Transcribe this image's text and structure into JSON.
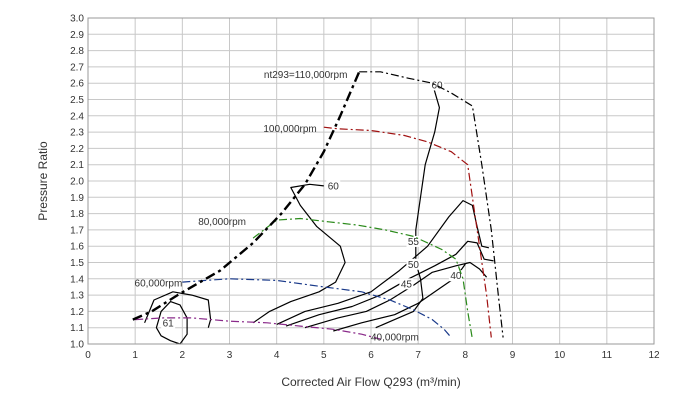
{
  "chart_data": {
    "type": "line",
    "title": "",
    "xlabel": "Corrected Air Flow Q293 (m³/min)",
    "ylabel": "Pressure Ratio",
    "xlim": [
      0,
      12
    ],
    "ylim": [
      1.0,
      3.0
    ],
    "x_ticks": [
      "0",
      "1",
      "2",
      "3",
      "4",
      "5",
      "6",
      "7",
      "8",
      "9",
      "10",
      "11",
      "12"
    ],
    "y_ticks": [
      "1.0",
      "1.1",
      "1.2",
      "1.3",
      "1.4",
      "1.5",
      "1.6",
      "1.7",
      "1.8",
      "1.9",
      "2.0",
      "2.1",
      "2.2",
      "2.3",
      "2.4",
      "2.5",
      "2.6",
      "2.7",
      "2.8",
      "2.9",
      "3.0"
    ],
    "grid": true,
    "surge_line": {
      "color": "#000000",
      "points": [
        [
          0.95,
          1.15
        ],
        [
          1.35,
          1.2
        ],
        [
          1.9,
          1.3
        ],
        [
          2.8,
          1.45
        ],
        [
          3.5,
          1.62
        ],
        [
          4.1,
          1.8
        ],
        [
          4.6,
          1.98
        ],
        [
          5.0,
          2.18
        ],
        [
          5.35,
          2.4
        ],
        [
          5.75,
          2.67
        ]
      ]
    },
    "speed_lines": [
      {
        "label": "nt293=110,000rpm",
        "color": "#000000",
        "points": [
          [
            5.75,
            2.67
          ],
          [
            6.2,
            2.67
          ],
          [
            6.8,
            2.63
          ],
          [
            7.3,
            2.6
          ],
          [
            7.7,
            2.54
          ],
          [
            8.15,
            2.46
          ],
          [
            8.35,
            2.1
          ],
          [
            8.55,
            1.7
          ],
          [
            8.7,
            1.3
          ],
          [
            8.8,
            1.04
          ]
        ]
      },
      {
        "label": "100,000rpm",
        "color": "#a01010",
        "points": [
          [
            5.0,
            2.33
          ],
          [
            5.3,
            2.32
          ],
          [
            6.0,
            2.31
          ],
          [
            6.7,
            2.28
          ],
          [
            7.2,
            2.24
          ],
          [
            7.7,
            2.18
          ],
          [
            8.05,
            2.1
          ],
          [
            8.15,
            1.9
          ],
          [
            8.3,
            1.6
          ],
          [
            8.45,
            1.3
          ],
          [
            8.55,
            1.04
          ]
        ]
      },
      {
        "label": "80,000rpm",
        "color": "#2a8a1a",
        "points": [
          [
            3.5,
            1.65
          ],
          [
            4.0,
            1.76
          ],
          [
            4.5,
            1.77
          ],
          [
            5.1,
            1.75
          ],
          [
            5.7,
            1.73
          ],
          [
            6.3,
            1.7
          ],
          [
            6.9,
            1.66
          ],
          [
            7.5,
            1.58
          ],
          [
            7.8,
            1.52
          ],
          [
            7.95,
            1.4
          ],
          [
            8.05,
            1.2
          ],
          [
            8.15,
            1.03
          ]
        ]
      },
      {
        "label": "60,000rpm",
        "color": "#1a3a8a",
        "points": [
          [
            2.0,
            1.38
          ],
          [
            2.5,
            1.39
          ],
          [
            3.0,
            1.4
          ],
          [
            4.0,
            1.39
          ],
          [
            5.0,
            1.35
          ],
          [
            5.8,
            1.32
          ],
          [
            6.4,
            1.27
          ],
          [
            6.9,
            1.21
          ],
          [
            7.3,
            1.15
          ],
          [
            7.55,
            1.09
          ],
          [
            7.7,
            1.04
          ]
        ]
      },
      {
        "label": "40,000rpm",
        "color": "#8a2a8a",
        "points": [
          [
            1.0,
            1.15
          ],
          [
            1.6,
            1.16
          ],
          [
            2.2,
            1.16
          ],
          [
            3.0,
            1.14
          ],
          [
            3.8,
            1.13
          ],
          [
            4.5,
            1.11
          ],
          [
            5.2,
            1.09
          ],
          [
            5.8,
            1.06
          ],
          [
            6.2,
            1.03
          ]
        ]
      }
    ],
    "efficiency_contours": [
      {
        "label": "60",
        "color": "#000000",
        "label_at": [
          5.2,
          1.96
        ],
        "points": [
          [
            3.5,
            1.13
          ],
          [
            3.85,
            1.2
          ],
          [
            4.3,
            1.26
          ],
          [
            4.9,
            1.32
          ],
          [
            5.25,
            1.38
          ],
          [
            5.45,
            1.5
          ],
          [
            5.35,
            1.6
          ],
          [
            4.85,
            1.72
          ],
          [
            4.5,
            1.85
          ],
          [
            4.3,
            1.96
          ],
          [
            4.7,
            1.98
          ],
          [
            5.0,
            1.97
          ]
        ]
      },
      {
        "label": "60",
        "color": "#000000",
        "label_at": [
          7.4,
          2.58
        ],
        "points": [
          [
            6.1,
            1.1
          ],
          [
            6.5,
            1.15
          ],
          [
            6.9,
            1.2
          ],
          [
            7.1,
            1.28
          ],
          [
            7.05,
            1.4
          ],
          [
            6.95,
            1.5
          ],
          [
            6.95,
            1.7
          ],
          [
            7.05,
            1.9
          ],
          [
            7.15,
            2.1
          ],
          [
            7.35,
            2.3
          ],
          [
            7.45,
            2.45
          ],
          [
            7.3,
            2.6
          ]
        ]
      },
      {
        "label": "55",
        "color": "#000000",
        "label_at": [
          6.9,
          1.62
        ],
        "points": [
          [
            4.0,
            1.12
          ],
          [
            4.6,
            1.2
          ],
          [
            5.3,
            1.25
          ],
          [
            6.0,
            1.32
          ],
          [
            6.6,
            1.45
          ],
          [
            7.2,
            1.6
          ],
          [
            7.65,
            1.78
          ],
          [
            7.95,
            1.88
          ],
          [
            8.15,
            1.85
          ],
          [
            8.25,
            1.72
          ],
          [
            8.35,
            1.6
          ],
          [
            8.5,
            1.59
          ]
        ]
      },
      {
        "label": "50",
        "color": "#000000",
        "label_at": [
          6.9,
          1.48
        ],
        "points": [
          [
            4.2,
            1.11
          ],
          [
            4.9,
            1.18
          ],
          [
            5.6,
            1.23
          ],
          [
            6.2,
            1.3
          ],
          [
            6.8,
            1.4
          ],
          [
            7.35,
            1.48
          ],
          [
            7.8,
            1.55
          ],
          [
            8.05,
            1.63
          ],
          [
            8.25,
            1.62
          ],
          [
            8.4,
            1.52
          ],
          [
            8.6,
            1.51
          ]
        ]
      },
      {
        "label": "45",
        "color": "#000000",
        "label_at": [
          6.75,
          1.36
        ],
        "points": [
          [
            4.6,
            1.1
          ],
          [
            5.3,
            1.16
          ],
          [
            5.9,
            1.2
          ],
          [
            6.4,
            1.27
          ],
          [
            6.9,
            1.36
          ],
          [
            7.3,
            1.44
          ],
          [
            7.8,
            1.48
          ],
          [
            8.1,
            1.5
          ],
          [
            8.3,
            1.46
          ],
          [
            8.45,
            1.41
          ]
        ]
      },
      {
        "label": "40",
        "color": "#000000",
        "label_at": [
          7.8,
          1.41
        ],
        "points": [
          [
            5.2,
            1.08
          ],
          [
            5.8,
            1.13
          ],
          [
            6.5,
            1.18
          ],
          [
            7.0,
            1.25
          ],
          [
            7.4,
            1.33
          ],
          [
            7.8,
            1.41
          ],
          [
            8.0,
            1.49
          ]
        ]
      },
      {
        "label": "61",
        "color": "#000000",
        "label_at": [
          1.7,
          1.12
        ],
        "closed": true,
        "points": [
          [
            1.45,
            1.1
          ],
          [
            1.55,
            1.2
          ],
          [
            1.75,
            1.26
          ],
          [
            1.95,
            1.24
          ],
          [
            2.1,
            1.16
          ],
          [
            2.1,
            1.06
          ],
          [
            1.95,
            1.0
          ],
          [
            1.75,
            1.02
          ],
          [
            1.55,
            1.05
          ]
        ]
      },
      {
        "label": "",
        "color": "#000000",
        "closed": false,
        "points": [
          [
            1.2,
            1.13
          ],
          [
            1.4,
            1.27
          ],
          [
            1.8,
            1.32
          ],
          [
            2.2,
            1.3
          ],
          [
            2.55,
            1.27
          ],
          [
            2.6,
            1.15
          ],
          [
            2.55,
            1.1
          ]
        ]
      }
    ],
    "annotations": [
      {
        "text": "nt293=110,000rpm",
        "x": 5.5,
        "y": 2.65,
        "anchor": "end"
      },
      {
        "text": "100,000rpm",
        "x": 4.85,
        "y": 2.32,
        "anchor": "end"
      },
      {
        "text": "80,000rpm",
        "x": 3.35,
        "y": 1.75,
        "anchor": "end"
      },
      {
        "text": "60,000rpm",
        "x": 2.0,
        "y": 1.37,
        "anchor": "end"
      },
      {
        "text": "40,000rpm",
        "x": 6.0,
        "y": 1.04,
        "anchor": "start"
      }
    ]
  }
}
